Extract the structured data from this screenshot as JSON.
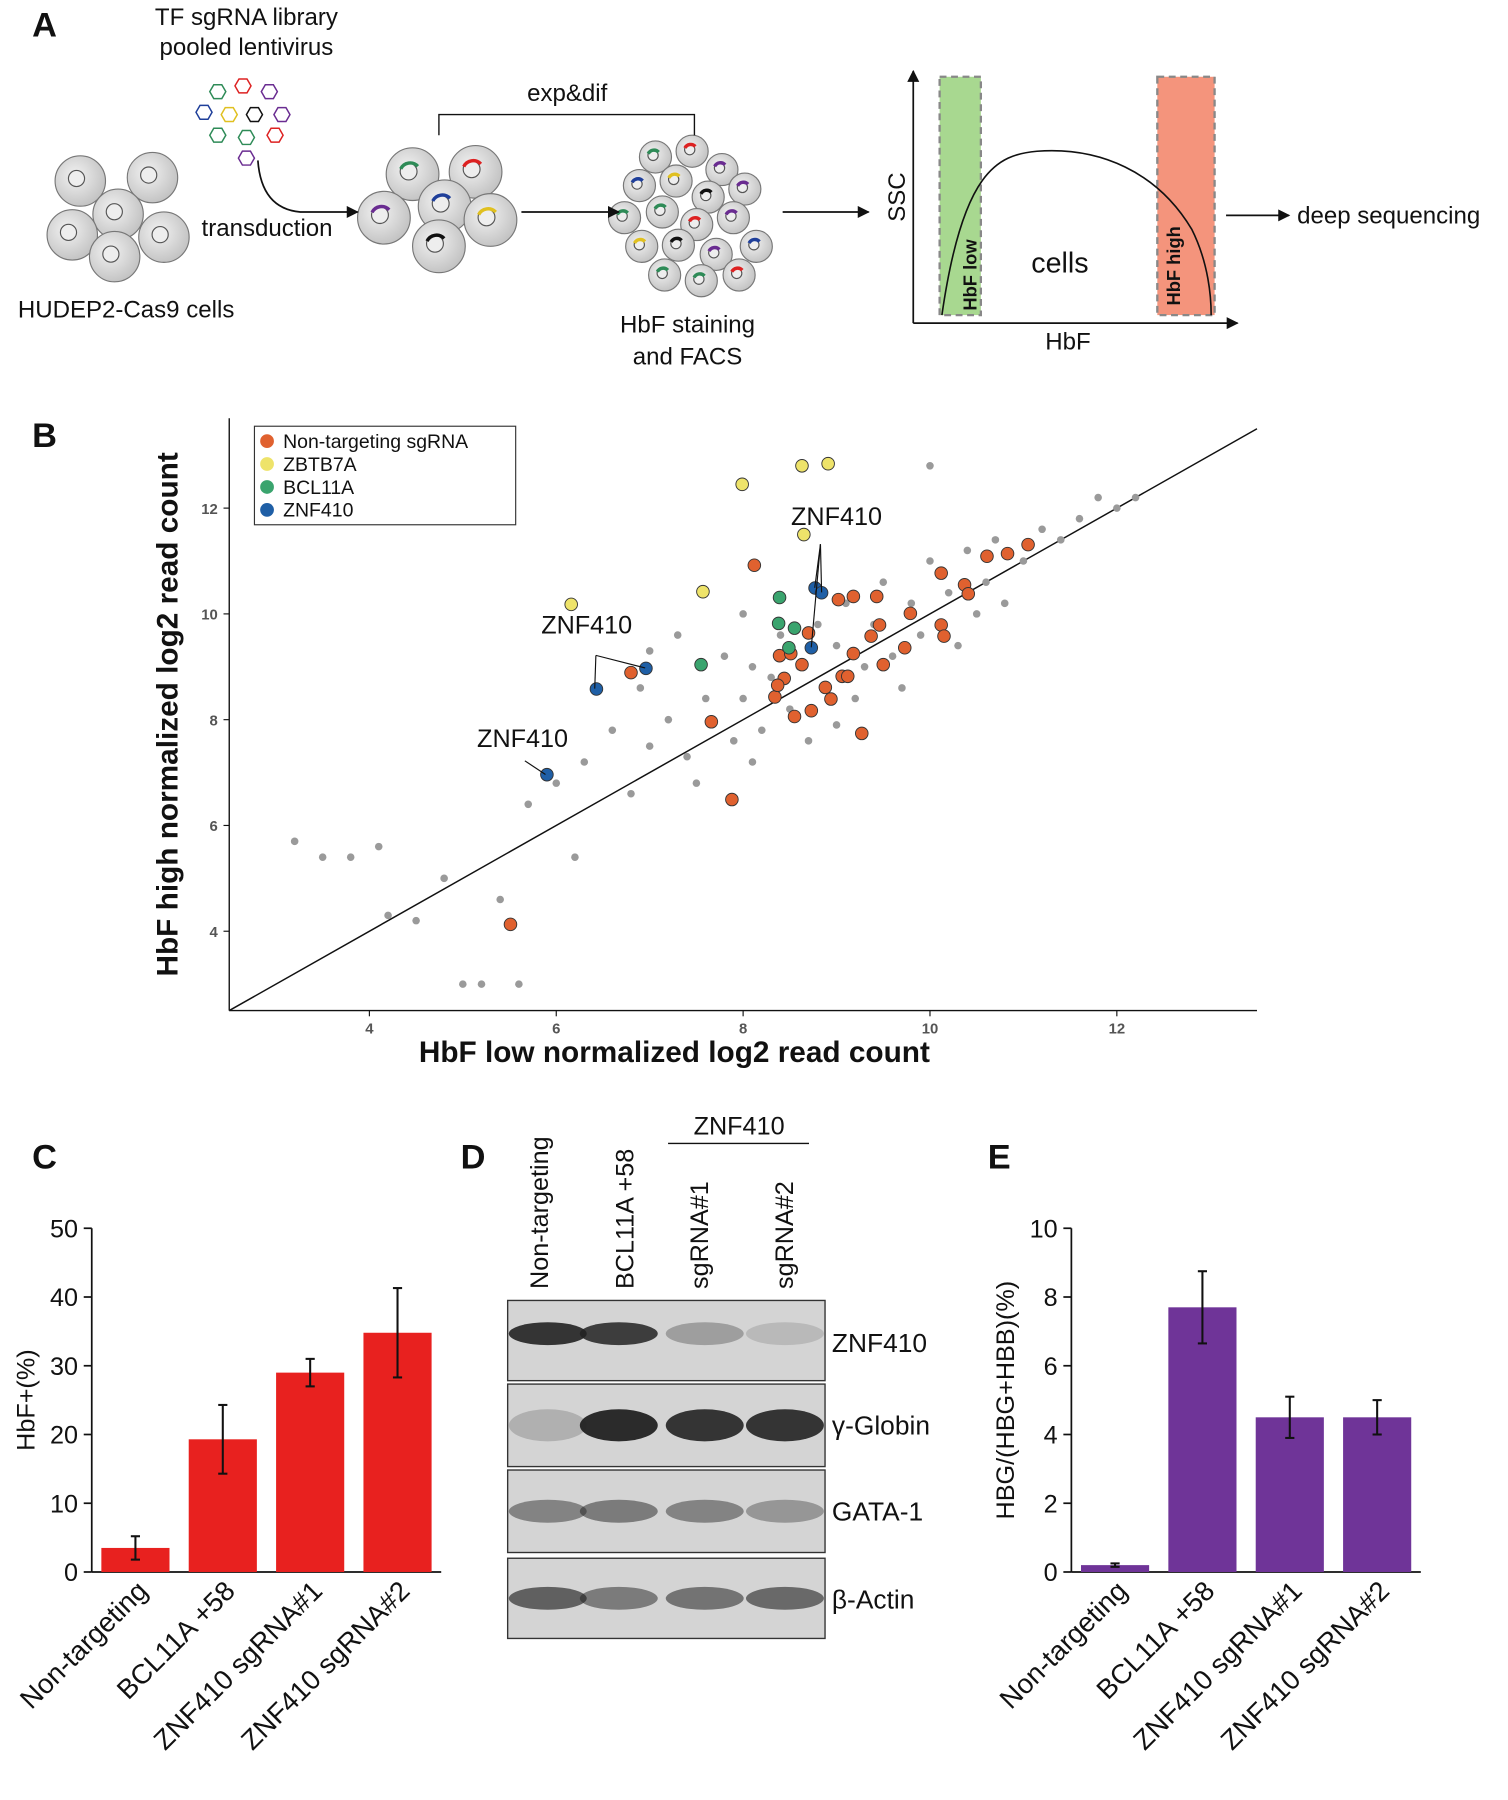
{
  "panel_labels": [
    "A",
    "B",
    "C",
    "D",
    "E"
  ],
  "panel_a": {
    "library": [
      "TF sgRNA library",
      "pooled lentivirus"
    ],
    "transduction": "transduction",
    "cells_label": "HUDEP2-Cas9 cells",
    "exp_dif": "exp&dif",
    "staining": [
      "HbF staining",
      "and FACS"
    ],
    "facs": {
      "y_axis": "SSC",
      "x_axis": "HbF",
      "cells": "cells",
      "low_gate": "HbF low",
      "high_gate": "HbF high"
    },
    "output": "deep sequencing"
  },
  "chart_data": [
    {
      "type": "scatter",
      "xlabel": "HbF low normalized log2 read count",
      "ylabel": "HbF high normalized log2 read count",
      "xlim": [
        2.5,
        13.5
      ],
      "ylim": [
        2.5,
        13.7
      ],
      "xticks": [
        4,
        6,
        8,
        10,
        12
      ],
      "yticks": [
        4,
        6,
        8,
        10,
        12
      ],
      "diagonal": true,
      "legend": "upper left",
      "annotations": [
        "ZNF410",
        "ZNF410",
        "ZNF410"
      ],
      "series": [
        {
          "color": "#9a9a9a",
          "x": [
            3.2,
            3.5,
            3.8,
            4.1,
            4.2,
            4.5,
            5.0,
            5.2,
            5.6,
            4.8,
            5.7,
            6.0,
            6.3,
            6.6,
            6.9,
            7.0,
            7.2,
            7.4,
            7.6,
            7.8,
            7.9,
            8.0,
            8.1,
            8.2,
            8.3,
            8.4,
            8.5,
            8.6,
            8.7,
            8.8,
            8.9,
            9.0,
            9.1,
            9.2,
            9.3,
            9.4,
            9.5,
            9.6,
            9.7,
            9.8,
            9.9,
            10.0,
            10.1,
            10.2,
            10.3,
            10.4,
            10.5,
            10.6,
            10.7,
            10.8,
            11.0,
            11.2,
            11.4,
            11.6,
            11.8,
            12.0,
            12.2,
            10.0,
            7.3,
            6.8,
            7.5,
            8.1,
            9.0,
            6.2,
            5.4,
            7.0,
            8.0
          ],
          "values": [
            5.7,
            5.4,
            5.4,
            5.6,
            4.3,
            4.2,
            3.0,
            3.0,
            3.0,
            5.0,
            6.4,
            6.8,
            7.2,
            7.8,
            8.6,
            7.5,
            8.0,
            7.3,
            8.4,
            9.2,
            7.6,
            8.4,
            9.0,
            7.8,
            8.8,
            9.6,
            8.2,
            9.0,
            7.6,
            9.8,
            8.6,
            9.4,
            10.2,
            8.4,
            9.0,
            9.8,
            10.6,
            9.2,
            8.6,
            10.2,
            9.6,
            11.0,
            9.8,
            10.4,
            9.4,
            11.2,
            10.0,
            10.6,
            11.4,
            10.2,
            11.0,
            11.6,
            11.4,
            11.8,
            12.2,
            12.0,
            12.2,
            12.8,
            9.6,
            6.6,
            6.8,
            7.2,
            7.9,
            5.4,
            4.6,
            9.3,
            10.0
          ]
        },
        {
          "name": "Non-targeting sgRNA",
          "color": "#e0612f",
          "x": [
            8.12,
            6.8,
            7.66,
            5.51,
            7.88,
            8.39,
            8.44,
            8.34,
            8.51,
            8.63,
            8.88,
            9.06,
            9.18,
            9.37,
            9.46,
            9.43,
            9.18,
            9.79,
            10.12,
            10.12,
            10.37,
            10.41,
            10.15,
            10.61,
            10.83,
            11.05,
            9.73,
            9.12,
            8.94,
            8.73,
            9.27,
            9.5,
            8.55,
            8.37,
            8.7,
            9.02
          ],
          "values": [
            10.92,
            8.89,
            7.96,
            4.13,
            6.49,
            9.21,
            8.78,
            8.43,
            9.25,
            9.04,
            8.61,
            8.82,
            9.25,
            9.58,
            9.79,
            10.33,
            10.33,
            10.01,
            10.77,
            9.79,
            10.55,
            10.38,
            9.58,
            11.09,
            11.14,
            11.31,
            9.36,
            8.82,
            8.39,
            8.17,
            7.74,
            9.04,
            8.06,
            8.65,
            9.64,
            10.27
          ]
        },
        {
          "name": "ZBTB7A",
          "color": "#eee36a",
          "x": [
            7.99,
            8.63,
            8.91,
            8.65,
            7.57,
            6.16
          ],
          "values": [
            12.45,
            12.8,
            12.84,
            11.5,
            10.42,
            10.18
          ]
        },
        {
          "name": "BCL11A",
          "color": "#3aa46e",
          "x": [
            8.39,
            8.38,
            8.55,
            7.55,
            8.49
          ],
          "values": [
            10.31,
            9.82,
            9.73,
            9.04,
            9.36
          ]
        },
        {
          "name": "ZNF410",
          "color": "#1f5fa6",
          "x": [
            6.96,
            6.43,
            5.9,
            8.77,
            8.84,
            8.73
          ],
          "values": [
            8.97,
            8.58,
            6.96,
            10.49,
            10.4,
            9.36
          ]
        }
      ]
    },
    {
      "type": "bar",
      "ylabel": "HbF+(%)",
      "categories": [
        "Non-targeting",
        "BCL11A +58",
        "ZNF410 sgRNA#1",
        "ZNF410 sgRNA#2"
      ],
      "values": [
        3.5,
        19.3,
        29,
        34.8
      ],
      "errors": [
        1.7,
        5,
        2,
        6.5
      ],
      "color": "#e8211f",
      "ylim": [
        0,
        50
      ],
      "yticks": [
        0,
        10,
        20,
        30,
        40,
        50
      ]
    },
    {
      "type": "bar",
      "ylabel": "HBG/(HBG+HBB)(%)",
      "categories": [
        "Non-targeting",
        "BCL11A +58",
        "ZNF410 sgRNA#1",
        "ZNF410 sgRNA#2"
      ],
      "values": [
        0.2,
        7.7,
        4.5,
        4.5
      ],
      "errors": [
        0.05,
        1.05,
        0.6,
        0.5
      ],
      "color": "#6f3498",
      "ylim": [
        0,
        10
      ],
      "yticks": [
        0,
        2,
        4,
        6,
        8,
        10
      ]
    }
  ],
  "panel_d": {
    "lanes": [
      "Non-targeting",
      "BCL11A +58",
      "sgRNA#1",
      "sgRNA#2"
    ],
    "group": "ZNF410",
    "rows": [
      "ZNF410",
      "γ-Globin",
      "GATA-1",
      "β-Actin"
    ]
  }
}
